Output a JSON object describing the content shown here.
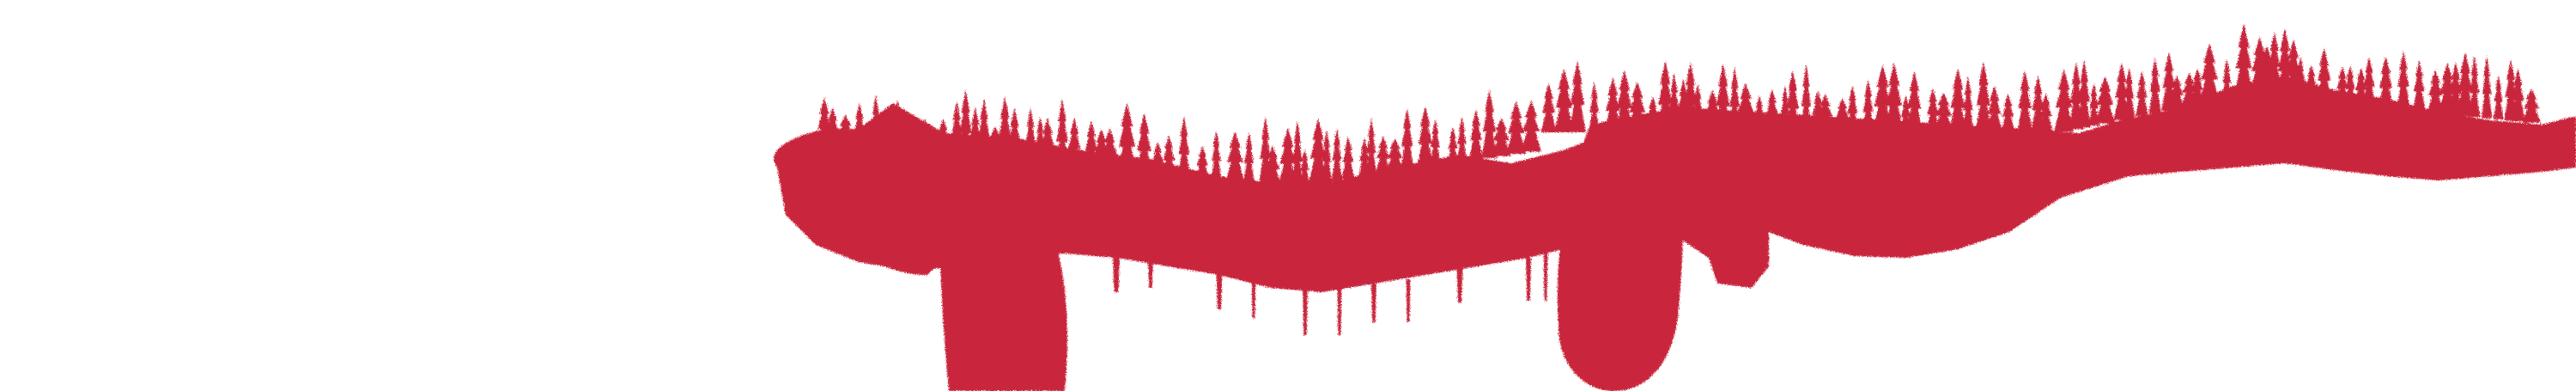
{
  "artwork": {
    "description_name": "forest-brushstroke-banner",
    "colors": {
      "background": "#ffffff",
      "paint": "#c9283e"
    }
  }
}
